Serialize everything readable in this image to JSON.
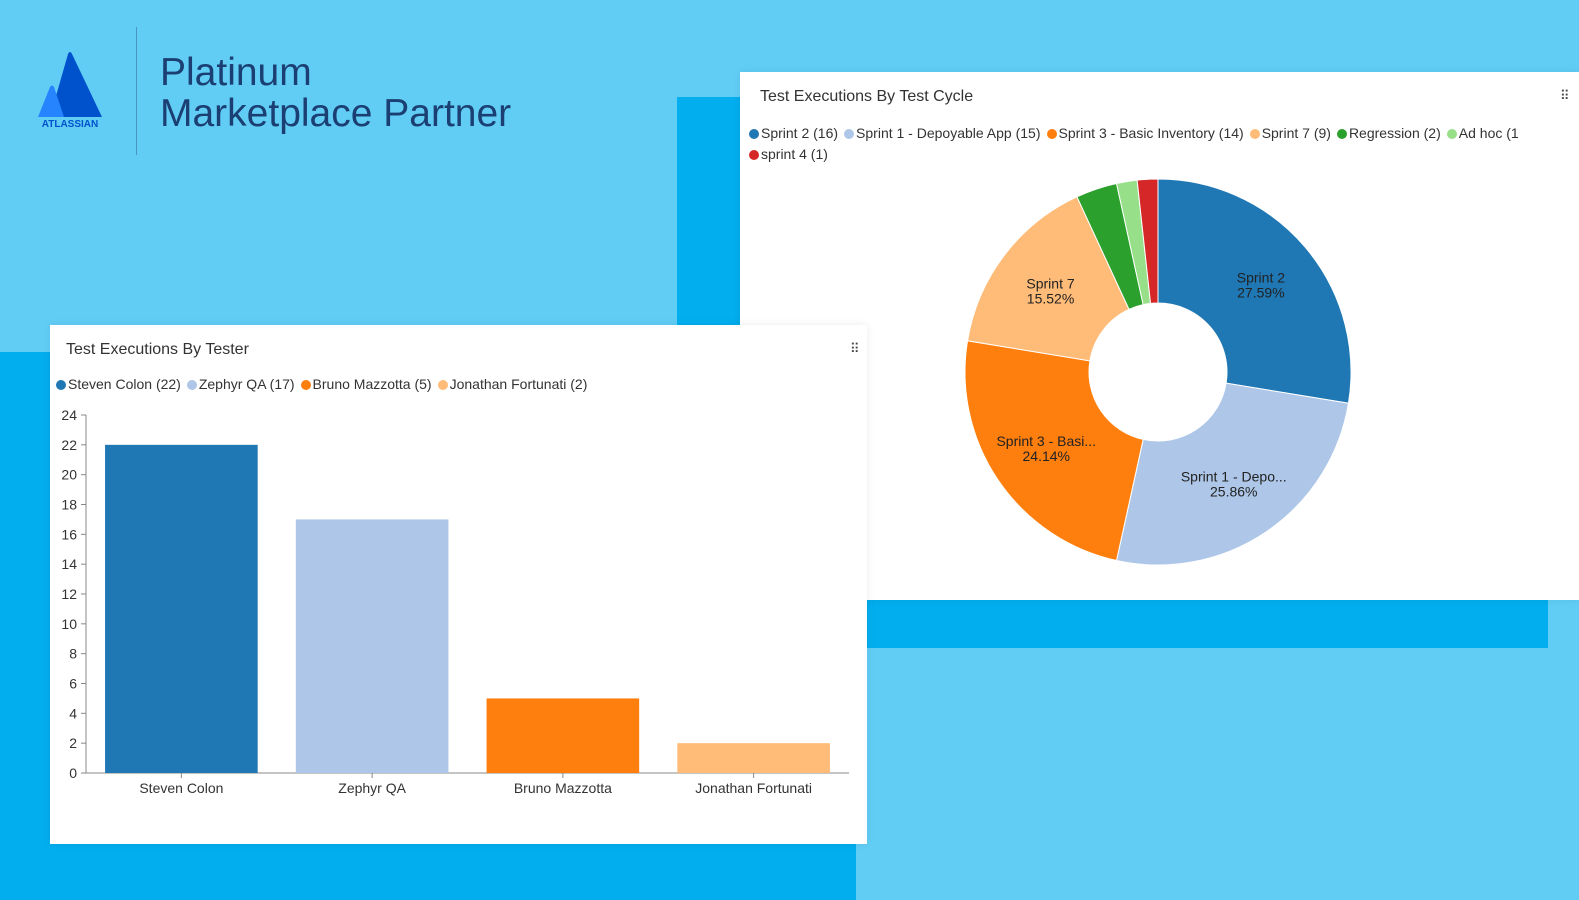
{
  "brand": {
    "logo_text": "ATLASSIAN",
    "title_line1": "Platinum",
    "title_line2": "Marketplace Partner",
    "colors": {
      "background": "#61cdf5",
      "accent_block": "#03aeef",
      "text": "#1b3f73",
      "logo": "#0052cc"
    }
  },
  "chart_data": [
    {
      "type": "pie",
      "variant": "donut",
      "title": "Test Executions By Test Cycle",
      "legend_position": "top",
      "slices": [
        {
          "name": "Sprint 2",
          "value": 16,
          "legend": "Sprint 2 (16)",
          "label": "Sprint 2",
          "percent": "27.59%",
          "color": "#1f77b4"
        },
        {
          "name": "Sprint 1 - Depoyable App",
          "value": 15,
          "legend": "Sprint 1 - Depoyable App (15)",
          "label": "Sprint 1 - Depo...",
          "percent": "25.86%",
          "color": "#aec7e8"
        },
        {
          "name": "Sprint 3 - Basic Inventory",
          "value": 14,
          "legend": "Sprint 3 - Basic Inventory (14)",
          "label": "Sprint 3 - Basi...",
          "percent": "24.14%",
          "color": "#ff7f0e"
        },
        {
          "name": "Sprint 7",
          "value": 9,
          "legend": "Sprint 7 (9)",
          "label": "Sprint 7",
          "percent": "15.52%",
          "color": "#ffbb78"
        },
        {
          "name": "Regression",
          "value": 2,
          "legend": "Regression (2)",
          "label": "",
          "percent": "",
          "color": "#2ca02c"
        },
        {
          "name": "Ad hoc",
          "value": 1,
          "legend": "Ad hoc (1",
          "label": "",
          "percent": "",
          "color": "#98df8a"
        },
        {
          "name": "sprint 4",
          "value": 1,
          "legend": "sprint 4 (1)",
          "label": "",
          "percent": "",
          "color": "#d62728"
        }
      ]
    },
    {
      "type": "bar",
      "title": "Test Executions By Tester",
      "legend_position": "top",
      "categories": [
        "Steven Colon",
        "Zephyr QA",
        "Bruno Mazzotta",
        "Jonathan Fortunati"
      ],
      "values": [
        22,
        17,
        5,
        2
      ],
      "legend": [
        "Steven Colon (22)",
        "Zephyr QA (17)",
        "Bruno Mazzotta (5)",
        "Jonathan Fortunati (2)"
      ],
      "colors": [
        "#1f77b4",
        "#aec7e8",
        "#ff7f0e",
        "#ffbb78"
      ],
      "xlabel": "",
      "ylabel": "",
      "ylim": [
        0,
        24
      ],
      "yticks": [
        0,
        2,
        4,
        6,
        8,
        10,
        12,
        14,
        16,
        18,
        20,
        22,
        24
      ],
      "grid": false
    }
  ]
}
